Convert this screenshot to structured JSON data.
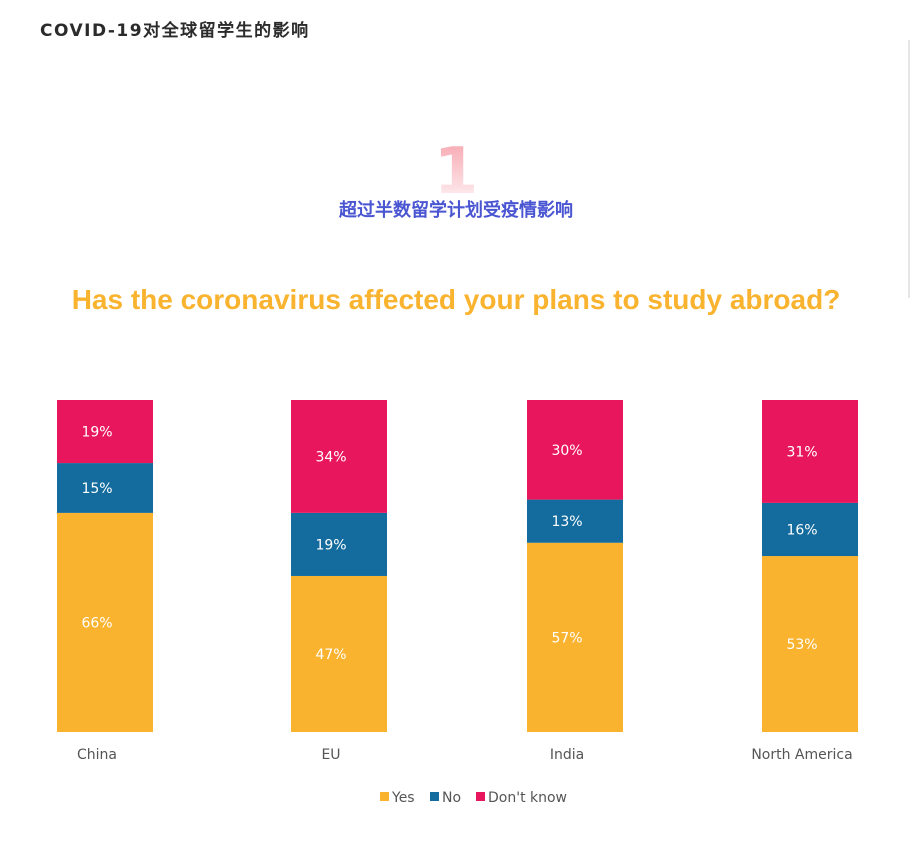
{
  "page": {
    "title": "COVID-19对全球留学生的影响",
    "section_number": "1",
    "section_subtitle": "超过半数留学计划受疫情影响"
  },
  "colors": {
    "yes": "#f9b32f",
    "no": "#136b9e",
    "dont_know": "#e8175d",
    "title": "#f9b32f",
    "subtitle": "#4a55d2"
  },
  "chart_data": {
    "type": "bar",
    "stacked": true,
    "title": "Has the coronavirus affected your plans to study abroad?",
    "categories": [
      "China",
      "EU",
      "India",
      "North America"
    ],
    "series": [
      {
        "name": "Yes",
        "values": [
          66,
          47,
          57,
          53
        ],
        "labels": [
          "66%",
          "47%",
          "57%",
          "53%"
        ]
      },
      {
        "name": "No",
        "values": [
          15,
          19,
          13,
          16
        ],
        "labels": [
          "15%",
          "19%",
          "13%",
          "16%"
        ]
      },
      {
        "name": "Don't know",
        "values": [
          19,
          34,
          30,
          31
        ],
        "labels": [
          "19%",
          "34%",
          "30%",
          "31%"
        ]
      }
    ],
    "ylim": [
      0,
      100
    ],
    "grid": false,
    "legend_position": "bottom-center"
  }
}
